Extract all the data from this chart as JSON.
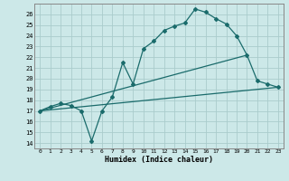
{
  "xlabel": "Humidex (Indice chaleur)",
  "bg_color": "#cce8e8",
  "grid_color": "#aacccc",
  "line_color": "#1a6b6b",
  "xlim": [
    -0.5,
    23.5
  ],
  "ylim": [
    13.5,
    27.0
  ],
  "xticks": [
    0,
    1,
    2,
    3,
    4,
    5,
    6,
    7,
    8,
    9,
    10,
    11,
    12,
    13,
    14,
    15,
    16,
    17,
    18,
    19,
    20,
    21,
    22,
    23
  ],
  "yticks": [
    14,
    15,
    16,
    17,
    18,
    19,
    20,
    21,
    22,
    23,
    24,
    25,
    26
  ],
  "line1_x": [
    0,
    1,
    2,
    3,
    4,
    5,
    6,
    7,
    8,
    9,
    10,
    11,
    12,
    13,
    14,
    15,
    16,
    17,
    18,
    19,
    20,
    21,
    22,
    23
  ],
  "line1_y": [
    17.0,
    17.4,
    17.7,
    17.5,
    17.0,
    14.2,
    17.0,
    18.3,
    21.5,
    19.5,
    22.8,
    23.5,
    24.5,
    24.9,
    25.2,
    26.5,
    26.2,
    25.6,
    25.1,
    24.0,
    22.2,
    19.8,
    19.5,
    19.2
  ],
  "line2_x": [
    0,
    20
  ],
  "line2_y": [
    17.0,
    22.2
  ],
  "line3_x": [
    0,
    23
  ],
  "line3_y": [
    17.0,
    19.2
  ],
  "marker": "D",
  "markersize": 2.0,
  "linewidth": 0.9
}
